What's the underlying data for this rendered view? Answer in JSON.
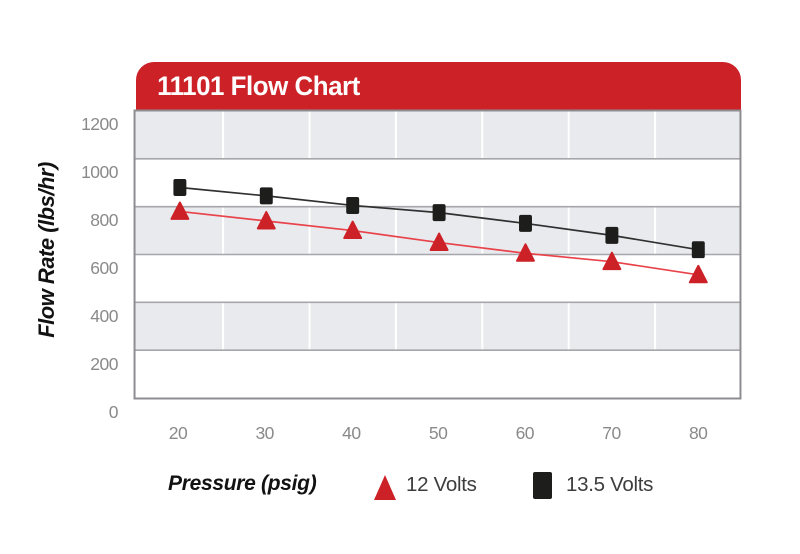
{
  "title": "11101 Flow Chart",
  "colors": {
    "brand_red": "#cc2127",
    "red_line": "#e8434a",
    "black_marker": "#1d1d1b",
    "black_line": "#303030",
    "band_gray": "#e9eaee",
    "band_white": "#ffffff",
    "grid_line": "#a6a6ab",
    "vgrid_line": "#ffffff",
    "plot_border": "#8d8d91",
    "tick_text": "#8a8a8a",
    "legend_text": "#3d3d3d",
    "title_text": "#ffffff"
  },
  "chart_data": {
    "type": "line",
    "title": "11101 Flow Chart",
    "xlabel": "Pressure (psig)",
    "ylabel": "Flow Rate (lbs/hr)",
    "x": [
      20,
      30,
      40,
      50,
      60,
      70,
      80
    ],
    "xticks": [
      "20",
      "30",
      "40",
      "50",
      "60",
      "70",
      "80"
    ],
    "yticks": [
      "0",
      "200",
      "400",
      "600",
      "800",
      "1000",
      "1200"
    ],
    "ytick_values": [
      0,
      200,
      400,
      600,
      800,
      1000,
      1200
    ],
    "ylim": [
      0,
      1200
    ],
    "xlim_categories": true,
    "grid": "horizontal gray/white bands every 200 units, white vertical gridlines midway between categories",
    "legend_position": "bottom",
    "series": [
      {
        "name": "12 Volts",
        "marker": "triangle",
        "values": [
          780,
          740,
          700,
          650,
          605,
          570,
          515
        ]
      },
      {
        "name": "13.5 Volts",
        "marker": "square",
        "values": [
          880,
          845,
          805,
          775,
          730,
          680,
          620
        ]
      }
    ]
  }
}
